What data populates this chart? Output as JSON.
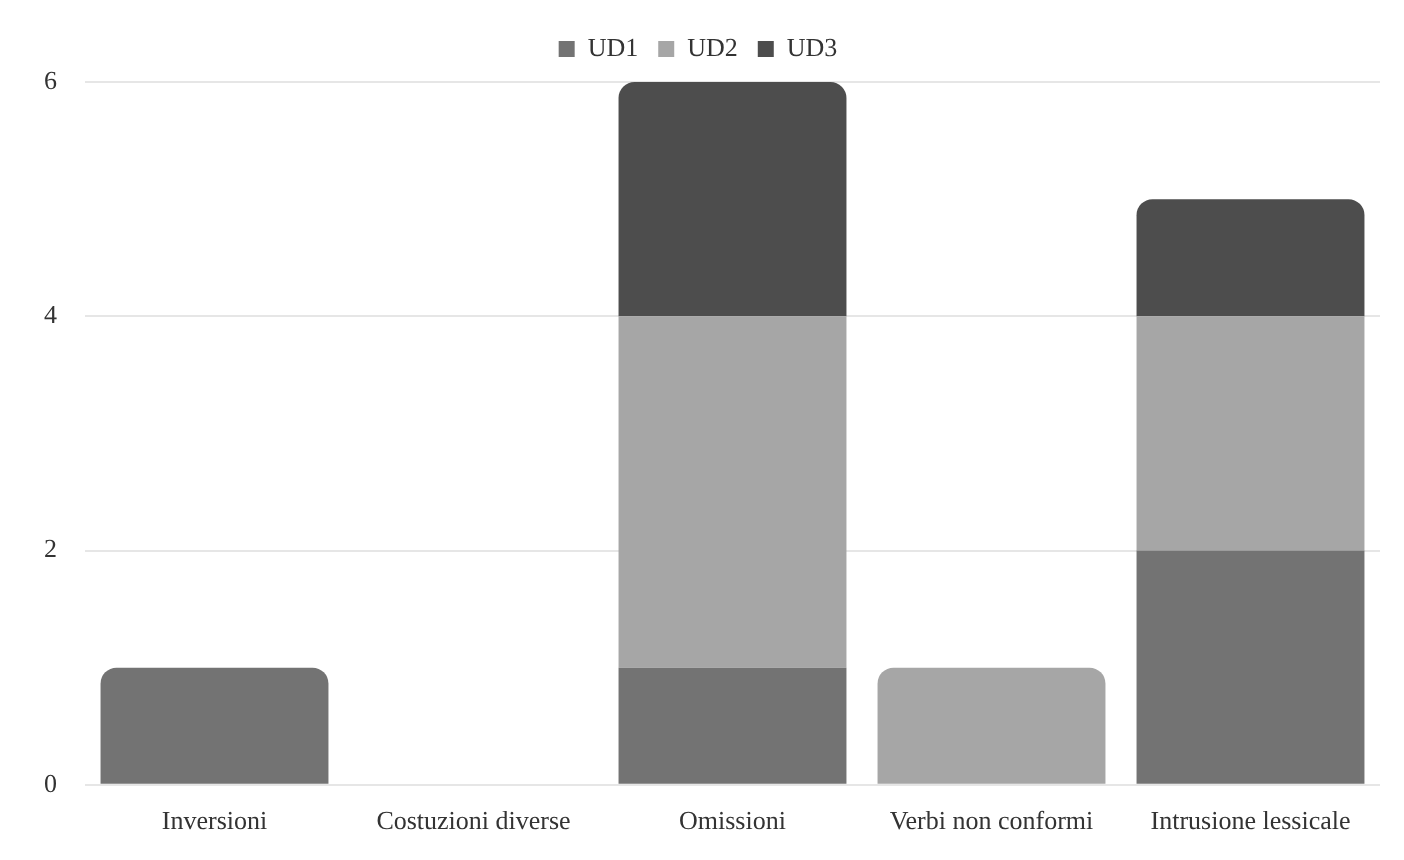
{
  "chart_data": {
    "type": "bar",
    "stacked": true,
    "categories": [
      "Inversioni",
      "Costuzioni diverse",
      "Omissioni",
      "Verbi non conformi",
      "Intrusione lessicale"
    ],
    "series": [
      {
        "name": "UD1",
        "color": "#737373",
        "values": [
          1,
          0,
          1,
          0,
          2
        ]
      },
      {
        "name": "UD2",
        "color": "#a6a6a6",
        "values": [
          0,
          0,
          3,
          1,
          2
        ]
      },
      {
        "name": "UD3",
        "color": "#4d4d4d",
        "values": [
          0,
          0,
          2,
          0,
          1
        ]
      }
    ],
    "ylim": [
      0,
      6
    ],
    "yticks": [
      0,
      2,
      4,
      6
    ],
    "grid": "y",
    "legend": "top"
  }
}
